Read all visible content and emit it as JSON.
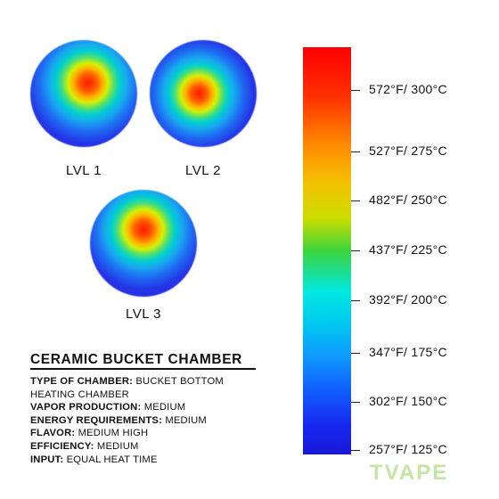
{
  "heatmaps": [
    {
      "label": "LVL 1",
      "hotspot": "rotated-blob"
    },
    {
      "label": "LVL 2",
      "hotspot": "rotated-blob"
    },
    {
      "label": "LVL 3",
      "hotspot": "upper-wide-blob"
    }
  ],
  "chamber": {
    "title": "CERAMIC BUCKET CHAMBER",
    "specs": [
      {
        "key": "TYPE OF CHAMBER:",
        "value": "BUCKET BOTTOM HEATING CHAMBER"
      },
      {
        "key": "VAPOR PRODUCTION:",
        "value": "MEDIUM"
      },
      {
        "key": "ENERGY REQUIREMENTS:",
        "value": "MEDIUM"
      },
      {
        "key": "FLAVOR:",
        "value": "MEDIUM HIGH"
      },
      {
        "key": "EFFICIENCY:",
        "value": "MEDIUM"
      },
      {
        "key": "INPUT:",
        "value": "EQUAL HEAT TIME"
      }
    ]
  },
  "temperature_scale": {
    "labels": [
      "572°F/ 300°C",
      "527°F/ 275°C",
      "482°F/ 250°C",
      "437°F/ 225°C",
      "392°F/ 200°C",
      "347°F/ 175°C",
      "302°F/ 150°C",
      "257°F/ 125°C"
    ],
    "colors": {
      "hot": "#ff0000",
      "mid": "#3dd43d",
      "cold": "#1a18d8"
    }
  },
  "brand": {
    "name": "TVAPE",
    "color": "#c6e4a4"
  }
}
